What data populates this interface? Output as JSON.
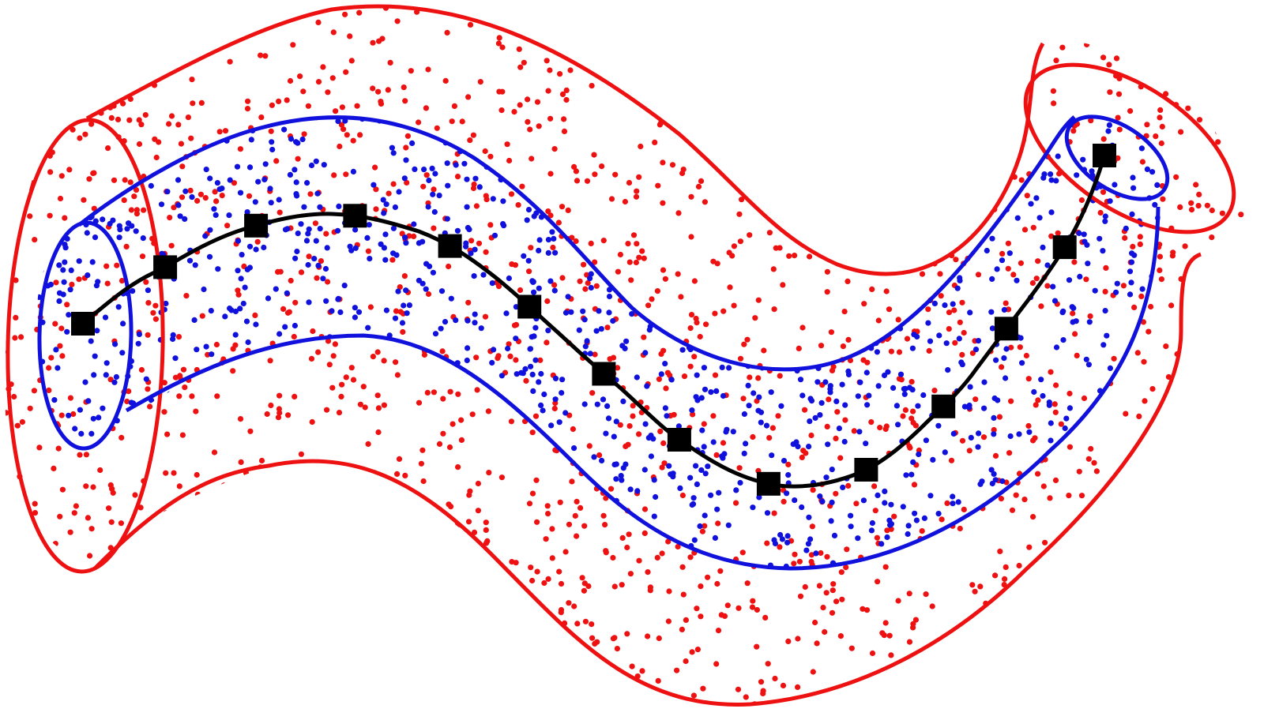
{
  "colors": {
    "outer_tube": "#ee1111",
    "inner_tube": "#1111dd",
    "centerline": "#000000",
    "markers": "#000000",
    "background": "#ffffff"
  },
  "diagram": {
    "shape": "nested tubes around a curved centerline",
    "centerline_marker_count": 14,
    "scatter": {
      "outer_tube_dots": 2000,
      "inner_tube_dots": 1800,
      "seed": 20240
    }
  }
}
